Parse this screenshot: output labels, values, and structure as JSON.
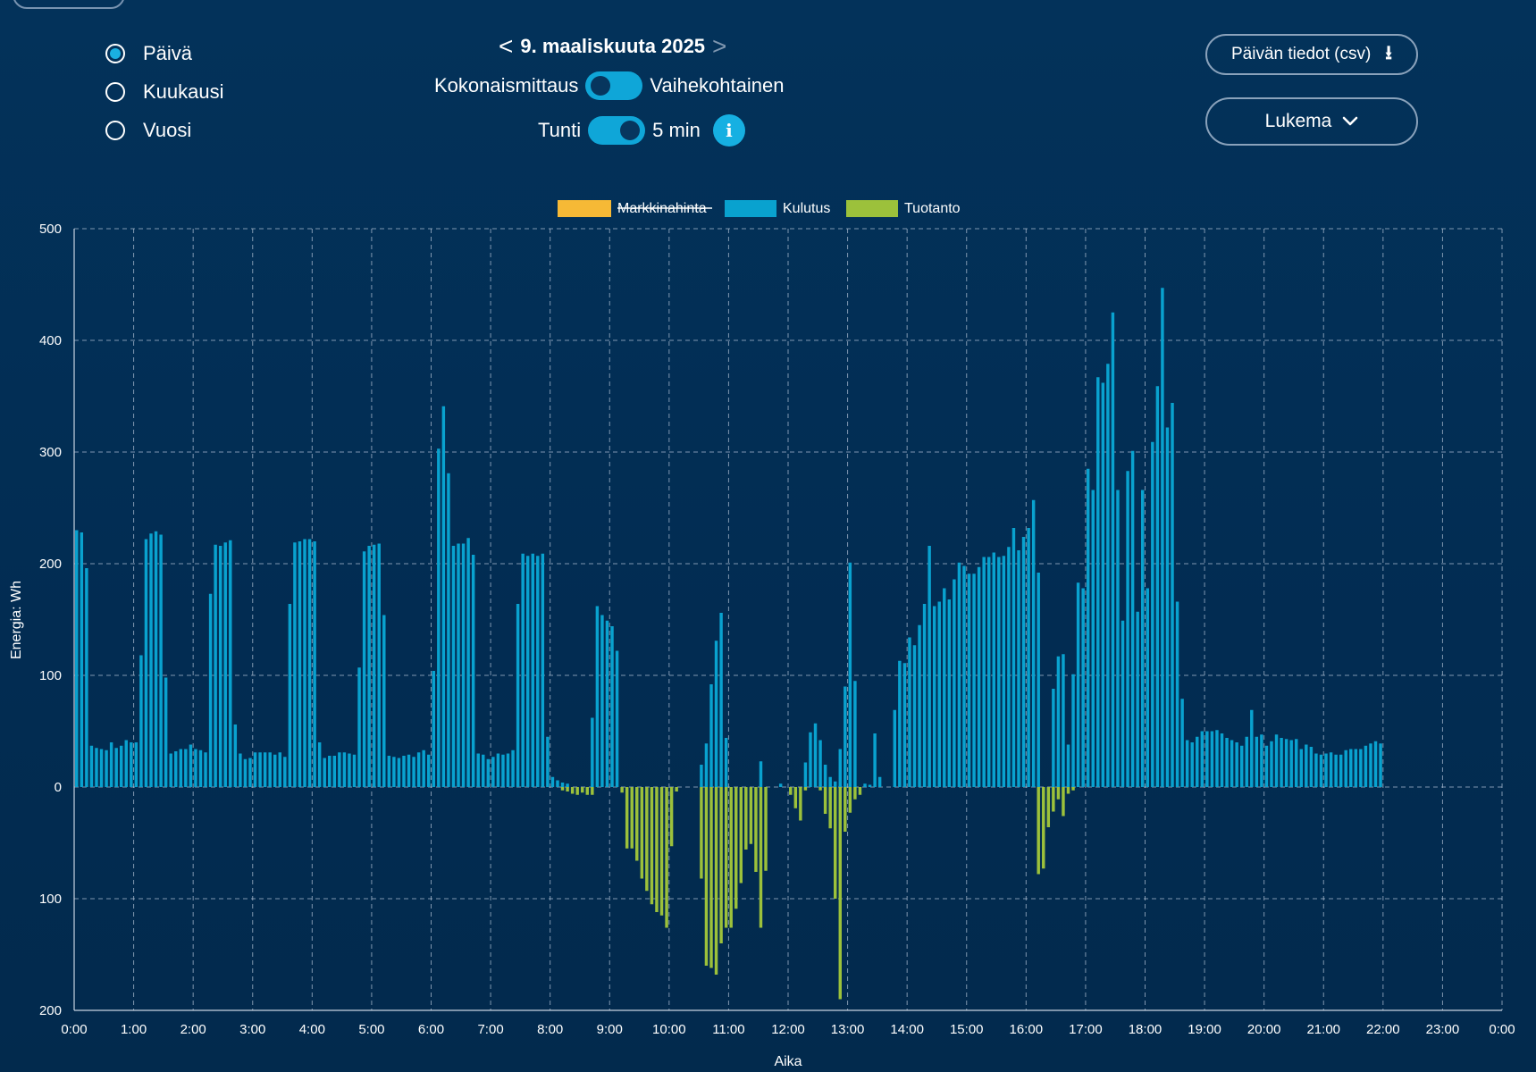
{
  "controls": {
    "period_options": [
      {
        "label": "Päivä",
        "selected": true
      },
      {
        "label": "Kuukausi",
        "selected": false
      },
      {
        "label": "Vuosi",
        "selected": false
      }
    ],
    "date_label": "9. maaliskuuta 2025",
    "prev_arrow": "<",
    "next_arrow": ">",
    "toggle_measure": {
      "left_label": "Kokonaismittaus",
      "right_label": "Vaihekohtainen"
    },
    "toggle_interval": {
      "left_label": "Tunti",
      "right_label": "5 min"
    },
    "info_icon": "i",
    "csv_button_label": "Päivän tiedot (csv)",
    "download_icon": "⭳",
    "dropdown_label": "Lukema",
    "chevron_icon": "⌄"
  },
  "colors": {
    "consumption": "#09a2cf",
    "production": "#9cc13b",
    "market_price": "#f6b936",
    "accent": "#14aee0"
  },
  "chart_data": {
    "type": "bar",
    "title": "",
    "xlabel": "Aika",
    "ylabel": "Energia: Wh",
    "ylim": [
      -200,
      500
    ],
    "y_ticks": [
      500,
      400,
      300,
      200,
      100,
      0,
      -100,
      -200
    ],
    "y_tick_labels": [
      "500",
      "400",
      "300",
      "200",
      "100",
      "0",
      "100",
      "200"
    ],
    "x_ticks": [
      "0:00",
      "1:00",
      "2:00",
      "3:00",
      "4:00",
      "5:00",
      "6:00",
      "7:00",
      "8:00",
      "9:00",
      "10:00",
      "11:00",
      "12:00",
      "13:00",
      "14:00",
      "15:00",
      "16:00",
      "17:00",
      "18:00",
      "19:00",
      "20:00",
      "21:00",
      "22:00",
      "23:00",
      "0:00"
    ],
    "interval_minutes": 5,
    "legend": [
      {
        "label": "Markkinahinta",
        "hidden": true
      },
      {
        "label": "Kulutus",
        "hidden": false
      },
      {
        "label": "Tuotanto",
        "hidden": false
      }
    ],
    "series": [
      {
        "name": "Kulutus",
        "values": [
          230,
          228,
          196,
          37,
          35,
          34,
          33,
          40,
          35,
          37,
          42,
          40,
          40,
          118,
          222,
          227,
          229,
          226,
          98,
          30,
          32,
          34,
          34,
          38,
          34,
          33,
          31,
          173,
          217,
          216,
          219,
          221,
          56,
          30,
          25,
          26,
          31,
          31,
          31,
          31,
          29,
          31,
          27,
          164,
          219,
          220,
          222,
          222,
          220,
          40,
          26,
          28,
          28,
          31,
          31,
          30,
          29,
          107,
          211,
          216,
          217,
          218,
          154,
          28,
          27,
          26,
          28,
          29,
          27,
          31,
          33,
          29,
          104,
          303,
          341,
          281,
          216,
          218,
          218,
          223,
          208,
          30,
          29,
          25,
          27,
          30,
          29,
          30,
          33,
          164,
          209,
          207,
          209,
          207,
          209,
          45,
          9,
          6,
          4,
          3,
          0,
          0,
          0,
          0,
          62,
          162,
          154,
          149,
          144,
          122,
          0,
          0,
          0,
          0,
          0,
          0,
          0,
          0,
          0,
          0,
          0,
          0,
          0,
          0,
          0,
          0,
          20,
          39,
          92,
          131,
          156,
          44,
          0,
          0,
          0,
          0,
          0,
          0,
          23,
          0,
          0,
          0,
          3,
          0,
          0,
          0,
          0,
          22,
          49,
          57,
          42,
          20,
          9,
          5,
          34,
          90,
          201,
          95,
          0,
          3,
          2,
          48,
          9,
          0,
          0,
          69,
          113,
          111,
          134,
          127,
          145,
          164,
          216,
          162,
          166,
          178,
          168,
          186,
          201,
          198,
          191,
          191,
          197,
          206,
          206,
          210,
          206,
          207,
          215,
          232,
          212,
          224,
          232,
          257,
          192,
          0,
          0,
          88,
          117,
          119,
          38,
          101,
          183,
          178,
          285,
          266,
          367,
          362,
          379,
          425,
          266,
          149,
          283,
          301,
          157,
          266,
          178,
          309,
          359,
          447,
          322,
          344,
          166,
          79,
          42,
          40,
          45,
          50,
          50,
          50,
          51,
          48,
          44,
          42,
          40,
          37,
          45,
          69,
          45,
          47,
          37,
          41,
          47,
          44,
          43,
          42,
          43,
          34,
          38,
          36,
          30,
          29,
          30,
          31,
          29,
          29,
          33,
          34,
          34,
          34,
          37,
          39,
          41,
          39
        ]
      },
      {
        "name": "Tuotanto",
        "values": [
          0,
          0,
          0,
          0,
          0,
          0,
          0,
          0,
          0,
          0,
          0,
          0,
          0,
          0,
          0,
          0,
          0,
          0,
          0,
          0,
          0,
          0,
          0,
          0,
          0,
          0,
          0,
          0,
          0,
          0,
          0,
          0,
          0,
          0,
          0,
          0,
          0,
          0,
          0,
          0,
          0,
          0,
          0,
          0,
          0,
          0,
          0,
          0,
          0,
          0,
          0,
          0,
          0,
          0,
          0,
          0,
          0,
          0,
          0,
          0,
          0,
          0,
          0,
          0,
          0,
          0,
          0,
          0,
          0,
          0,
          0,
          0,
          0,
          0,
          0,
          0,
          0,
          0,
          0,
          0,
          0,
          0,
          0,
          0,
          0,
          0,
          0,
          0,
          0,
          0,
          0,
          0,
          0,
          0,
          0,
          0,
          0,
          0,
          -3,
          -4,
          -6,
          -7,
          -5,
          -7,
          -7,
          0,
          0,
          0,
          0,
          0,
          -5,
          -55,
          -55,
          -66,
          -82,
          -93,
          -105,
          -112,
          -115,
          -126,
          -53,
          -4,
          0,
          0,
          0,
          0,
          -82,
          -160,
          -162,
          -168,
          -140,
          -126,
          -126,
          -109,
          -86,
          -56,
          -51,
          -76,
          -126,
          -75,
          0,
          0,
          0,
          0,
          -7,
          -19,
          -30,
          -3,
          0,
          0,
          -3,
          -24,
          -37,
          -100,
          -190,
          -40,
          -23,
          -11,
          -7,
          0,
          0,
          0,
          0,
          0,
          0,
          0,
          0,
          0,
          0,
          0,
          0,
          0,
          0,
          0,
          0,
          0,
          0,
          0,
          0,
          0,
          0,
          0,
          0,
          0,
          0,
          0,
          0,
          0,
          0,
          0,
          0,
          0,
          0,
          0,
          -78,
          -73,
          -36,
          -22,
          -11,
          -26,
          -6,
          -3,
          0,
          0,
          0,
          0,
          0,
          0,
          0,
          0,
          0,
          0,
          0,
          0,
          0,
          0,
          0,
          0,
          0,
          0,
          0,
          0,
          0,
          0,
          0,
          0,
          0,
          0,
          0,
          0,
          0,
          0,
          0,
          0,
          0,
          0,
          0,
          0,
          0,
          0,
          0,
          0,
          0,
          0,
          0,
          0,
          0,
          0,
          0,
          0,
          0,
          0,
          0,
          0,
          0,
          0,
          0,
          0,
          0
        ]
      }
    ]
  }
}
